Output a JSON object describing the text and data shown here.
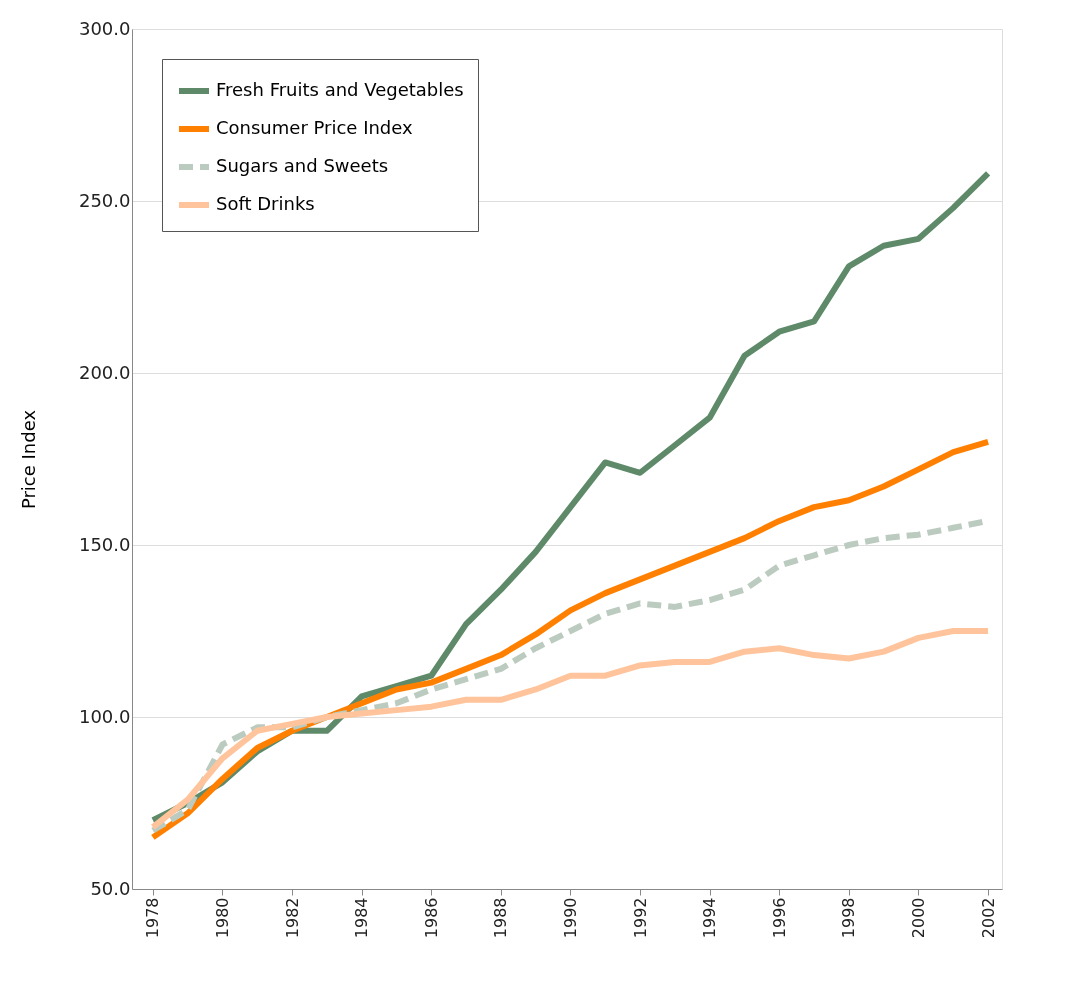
{
  "chart_data": {
    "type": "line",
    "ylabel": "Price Index",
    "x": [
      1978,
      1979,
      1980,
      1981,
      1982,
      1983,
      1984,
      1985,
      1986,
      1987,
      1988,
      1989,
      1990,
      1991,
      1992,
      1993,
      1994,
      1995,
      1996,
      1997,
      1998,
      1999,
      2000,
      2001,
      2002
    ],
    "xlim": [
      1977.4,
      2002.4
    ],
    "xticks": [
      1978,
      1980,
      1982,
      1984,
      1986,
      1988,
      1990,
      1992,
      1994,
      1996,
      1998,
      2000,
      2002
    ],
    "ylim": [
      50,
      300
    ],
    "yticks": [
      {
        "value": 50,
        "label": "50.0"
      },
      {
        "value": 100,
        "label": "100.0"
      },
      {
        "value": 150,
        "label": "150.0"
      },
      {
        "value": 200,
        "label": "200.0"
      },
      {
        "value": 250,
        "label": "250.0"
      },
      {
        "value": 300,
        "label": "300.0"
      }
    ],
    "grid": "y",
    "legend": "top left",
    "marker": "none",
    "series": [
      {
        "name": "Fresh Fruits and Vegetables",
        "color": "#5e8a69",
        "line_style": "solid",
        "values": [
          70,
          75,
          81,
          90,
          96,
          96,
          106,
          109,
          112,
          127,
          137,
          148,
          161,
          174,
          171,
          179,
          187,
          205,
          212,
          215,
          231,
          237,
          239,
          248,
          258
        ]
      },
      {
        "name": "Consumer Price Index",
        "color": "#ff8000",
        "line_style": "solid",
        "values": [
          65,
          72,
          82,
          91,
          96,
          100,
          104,
          108,
          110,
          114,
          118,
          124,
          131,
          136,
          140,
          144,
          148,
          152,
          157,
          161,
          163,
          167,
          172,
          177,
          180
        ]
      },
      {
        "name": "Sugars and Sweets",
        "color": "#bccbbf",
        "line_style": "dashed",
        "values": [
          67,
          73,
          92,
          97,
          97,
          100,
          102,
          104,
          108,
          111,
          114,
          120,
          125,
          130,
          133,
          132,
          134,
          137,
          144,
          147,
          150,
          152,
          153,
          155,
          157
        ]
      },
      {
        "name": "Soft Drinks",
        "color": "#ffc49c",
        "line_style": "solid",
        "values": [
          68,
          76,
          88,
          96,
          98,
          100,
          101,
          102,
          103,
          105,
          105,
          108,
          112,
          112,
          115,
          116,
          116,
          119,
          120,
          118,
          117,
          119,
          123,
          125,
          125
        ]
      }
    ]
  }
}
